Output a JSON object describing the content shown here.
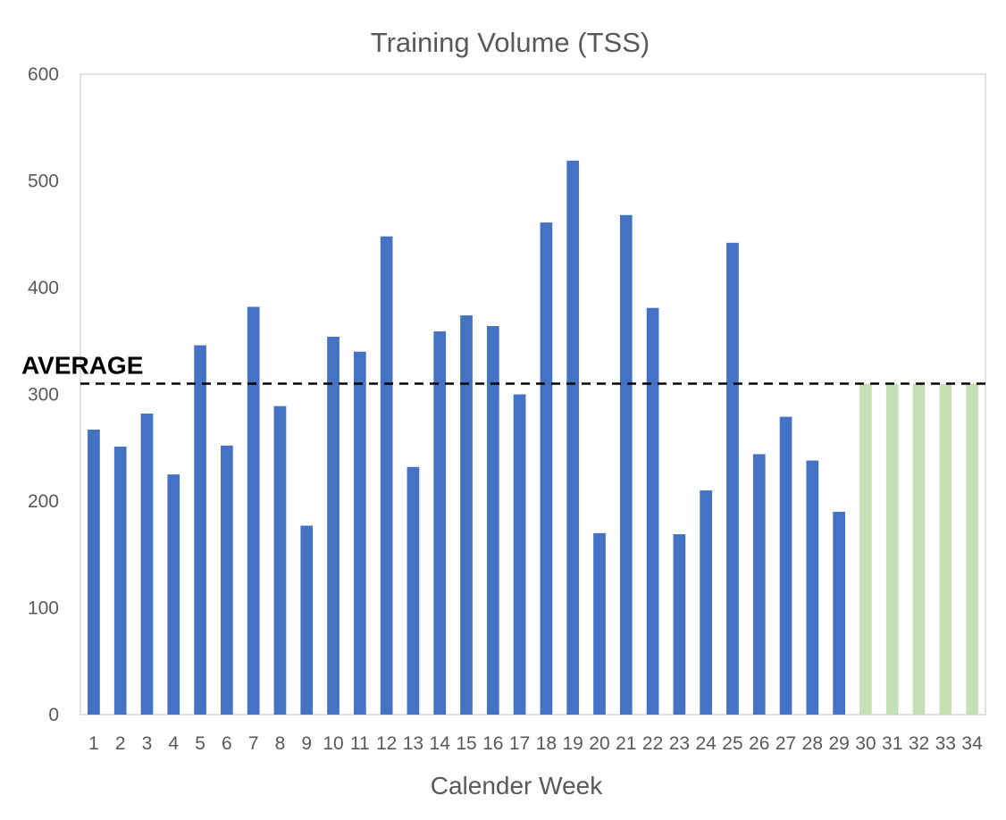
{
  "chart_data": {
    "type": "bar",
    "title": "Training Volume (TSS)",
    "xlabel": "Calender Week",
    "ylabel": "",
    "ylim": [
      0,
      600
    ],
    "yticks": [
      0,
      100,
      200,
      300,
      400,
      500,
      600
    ],
    "grid": false,
    "categories": [
      "1",
      "2",
      "3",
      "4",
      "5",
      "6",
      "7",
      "8",
      "9",
      "10",
      "11",
      "12",
      "13",
      "14",
      "15",
      "16",
      "17",
      "18",
      "19",
      "20",
      "21",
      "22",
      "23",
      "24",
      "25",
      "26",
      "27",
      "28",
      "29",
      "30",
      "31",
      "32",
      "33",
      "34"
    ],
    "series": [
      {
        "color": "#4472C4",
        "values": [
          267,
          251,
          282,
          225,
          346,
          252,
          382,
          289,
          177,
          354,
          340,
          448,
          232,
          359,
          374,
          364,
          300,
          461,
          519,
          170,
          468,
          381,
          169,
          210,
          442,
          244,
          279,
          238,
          190,
          null,
          null,
          null,
          null,
          null
        ]
      },
      {
        "color": "#C5E0B4",
        "values": [
          null,
          null,
          null,
          null,
          null,
          null,
          null,
          null,
          null,
          null,
          null,
          null,
          null,
          null,
          null,
          null,
          null,
          null,
          null,
          null,
          null,
          null,
          null,
          null,
          null,
          null,
          null,
          null,
          null,
          310,
          310,
          310,
          310,
          310
        ]
      }
    ],
    "average": {
      "label": "AVERAGE",
      "value": 310,
      "style": "dashed",
      "color": "#000000"
    }
  }
}
